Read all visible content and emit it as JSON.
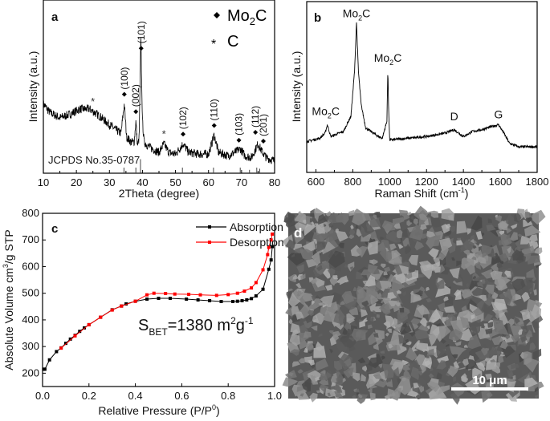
{
  "chart_data": [
    {
      "panel_label": "a",
      "type": "line",
      "xlabel": "2Theta (degree)",
      "ylabel": "Intensity (a.u.)",
      "xlim": [
        10,
        80
      ],
      "xticks": [
        10,
        20,
        30,
        40,
        50,
        60,
        70,
        80
      ],
      "ylim": [
        0,
        100
      ],
      "yticks_shown": false,
      "legend": [
        {
          "marker": "diamond",
          "label": {
            "main": "Mo",
            "sub": "2",
            "tail": "C"
          }
        },
        {
          "marker": "asterisk",
          "label": {
            "main": "C",
            "sub": "",
            "tail": ""
          }
        }
      ],
      "legend_placement": "top-right",
      "reference_label": "JCPDS No.35-0787",
      "reference_lines": [
        [
          34.4,
          1
        ],
        [
          38.0,
          1
        ],
        [
          39.4,
          2.5
        ],
        [
          52.1,
          1
        ],
        [
          61.5,
          1
        ],
        [
          69.6,
          1
        ],
        [
          72.4,
          0.6
        ],
        [
          74.6,
          1
        ],
        [
          75.5,
          0.8
        ]
      ],
      "series": [
        {
          "x": [
            10,
            12,
            15,
            18,
            21,
            24,
            27,
            30,
            32,
            33.5,
            34.5,
            35.2,
            36.5,
            37.5,
            38,
            38.5,
            39,
            39.5,
            40,
            40.5,
            41.5,
            43,
            45,
            46.5,
            48,
            50,
            52.3,
            54,
            57,
            60,
            61.7,
            63,
            66,
            69.7,
            71,
            73,
            75,
            76,
            77.5,
            80
          ],
          "y": [
            40,
            35,
            32,
            34,
            37,
            37,
            33,
            28,
            25,
            23,
            40,
            21,
            18,
            18,
            30,
            16,
            20,
            78,
            30,
            18,
            16,
            14,
            12,
            17,
            12,
            11,
            17,
            12,
            11,
            11,
            22,
            12,
            10,
            14,
            10,
            9,
            17,
            13,
            9,
            7
          ]
        }
      ],
      "annotations": [
        {
          "x": 25,
          "text": "*",
          "kind": "C"
        },
        {
          "x": 46.5,
          "text": "*",
          "kind": "C"
        },
        {
          "x": 34.5,
          "text": "(100)",
          "kind": "Mo2C"
        },
        {
          "x": 38.0,
          "text": "(002)",
          "kind": "Mo2C"
        },
        {
          "x": 39.6,
          "text": "(101)",
          "kind": "Mo2C"
        },
        {
          "x": 52.3,
          "text": "(102)",
          "kind": "Mo2C"
        },
        {
          "x": 61.7,
          "text": "(110)",
          "kind": "Mo2C"
        },
        {
          "x": 69.2,
          "text": "(103)",
          "kind": "Mo2C"
        },
        {
          "x": 74.2,
          "text": "(112)",
          "kind": "Mo2C"
        },
        {
          "x": 76.6,
          "text": "(201)",
          "kind": "Mo2C"
        }
      ]
    },
    {
      "panel_label": "b",
      "type": "line",
      "xlabel": {
        "main": "Raman Shift (cm",
        "sup": "-1",
        "tail": ")"
      },
      "ylabel": "Intensity (a.u.)",
      "xlim": [
        550,
        1800
      ],
      "xticks": [
        600,
        800,
        1000,
        1200,
        1400,
        1600,
        1800
      ],
      "ylim": [
        0,
        100
      ],
      "yticks_shown": false,
      "series": [
        {
          "x": [
            550,
            620,
            650,
            662,
            680,
            750,
            790,
            810,
            820,
            830,
            845,
            870,
            940,
            960,
            985,
            990,
            995,
            1000,
            1100,
            1200,
            1300,
            1350,
            1400,
            1450,
            1500,
            1590,
            1620,
            1650,
            1700,
            1800
          ],
          "y": [
            18,
            20,
            23,
            28,
            21,
            24,
            33,
            60,
            88,
            60,
            40,
            26,
            21,
            20,
            30,
            60,
            35,
            19,
            20,
            21,
            23,
            25,
            21,
            24,
            25,
            28,
            23,
            17,
            15,
            15
          ]
        }
      ],
      "annotations": [
        {
          "x": 662,
          "text": {
            "main": "Mo",
            "sub": "2",
            "tail": "C"
          }
        },
        {
          "x": 820,
          "text": {
            "main": "Mo",
            "sub": "2",
            "tail": "C"
          }
        },
        {
          "x": 990,
          "text": {
            "main": "Mo",
            "sub": "2",
            "tail": "C"
          }
        },
        {
          "x": 1350,
          "text": {
            "main": "D",
            "sub": "",
            "tail": ""
          }
        },
        {
          "x": 1590,
          "text": {
            "main": "G",
            "sub": "",
            "tail": ""
          }
        }
      ]
    },
    {
      "panel_label": "c",
      "type": "line",
      "xlabel": {
        "main": "Relative Pressure (P/P",
        "sup": "0",
        "tail": ")"
      },
      "ylabel": {
        "main": "Absolute Volume cm",
        "sup": "3",
        "tail": "/g STP"
      },
      "xlim": [
        0,
        1.0
      ],
      "ylim": [
        150,
        800
      ],
      "xticks": [
        "0.0",
        "0.2",
        "0.4",
        "0.6",
        "0.8",
        "1.0"
      ],
      "yticks": [
        200,
        300,
        400,
        500,
        600,
        700,
        800
      ],
      "legend_placement": "top-right",
      "annotation": {
        "main": "S",
        "sub": "BET",
        "mid": "=1380 m",
        "sup1": "2",
        "mid2": "g",
        "sup2": "-1"
      },
      "series": [
        {
          "name": "Absorption",
          "color": "#000000",
          "x": [
            0.005,
            0.01,
            0.03,
            0.06,
            0.08,
            0.1,
            0.12,
            0.14,
            0.16,
            0.18,
            0.2,
            0.25,
            0.3,
            0.34,
            0.36,
            0.4,
            0.45,
            0.5,
            0.55,
            0.62,
            0.67,
            0.72,
            0.77,
            0.82,
            0.84,
            0.86,
            0.88,
            0.9,
            0.92,
            0.95,
            0.975,
            0.985,
            0.99
          ],
          "y": [
            215,
            215,
            250,
            281,
            295,
            312,
            328,
            342,
            357,
            370,
            382,
            410,
            438,
            452,
            460,
            470,
            478,
            481,
            481,
            478,
            475,
            472,
            469,
            469,
            470,
            472,
            475,
            480,
            490,
            515,
            590,
            625,
            675
          ]
        },
        {
          "name": "Desorption",
          "color": "#ff0000",
          "x": [
            0.99,
            0.985,
            0.975,
            0.97,
            0.95,
            0.92,
            0.9,
            0.87,
            0.84,
            0.8,
            0.75,
            0.68,
            0.63,
            0.57,
            0.53,
            0.48,
            0.45,
            0.4,
            0.34,
            0.3,
            0.25,
            0.2,
            0.14,
            0.08
          ],
          "y": [
            722,
            700,
            672,
            645,
            588,
            540,
            520,
            508,
            500,
            495,
            492,
            494,
            496,
            497,
            499,
            500,
            494,
            470,
            452,
            437,
            410,
            382,
            340,
            294
          ]
        }
      ]
    }
  ],
  "sem_image": {
    "panel_label": "d",
    "scale_bar": "10 μm"
  }
}
